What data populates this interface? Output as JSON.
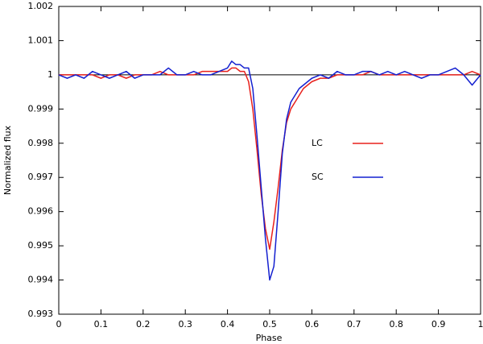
{
  "chart_data": {
    "type": "line",
    "x_label": "Phase",
    "y_label": "Normalized flux",
    "x": [
      0,
      0.02,
      0.04,
      0.06,
      0.08,
      0.1,
      0.12,
      0.14,
      0.16,
      0.18,
      0.2,
      0.22,
      0.24,
      0.26,
      0.28,
      0.3,
      0.32,
      0.34,
      0.36,
      0.38,
      0.4,
      0.41,
      0.42,
      0.43,
      0.44,
      0.45,
      0.46,
      0.47,
      0.48,
      0.49,
      0.5,
      0.51,
      0.52,
      0.53,
      0.54,
      0.55,
      0.56,
      0.57,
      0.58,
      0.59,
      0.6,
      0.62,
      0.64,
      0.66,
      0.68,
      0.7,
      0.72,
      0.74,
      0.76,
      0.78,
      0.8,
      0.82,
      0.84,
      0.86,
      0.88,
      0.9,
      0.92,
      0.94,
      0.96,
      0.98,
      1
    ],
    "series": [
      {
        "name": "LC",
        "color": "#e8201c",
        "values": [
          1.0,
          1.0,
          1.0,
          1.0,
          1.0,
          0.9999,
          1.0,
          1.0,
          0.9999,
          1.0,
          1.0,
          1.0,
          1.0001,
          1.0,
          1.0,
          1.0,
          1.0,
          1.0001,
          1.0001,
          1.0001,
          1.0001,
          1.0002,
          1.0002,
          1.0001,
          1.0001,
          0.9998,
          0.999,
          0.9978,
          0.9965,
          0.9955,
          0.9949,
          0.9957,
          0.9967,
          0.9978,
          0.9986,
          0.999,
          0.9992,
          0.9994,
          0.9996,
          0.9997,
          0.9998,
          0.9999,
          0.9999,
          1.0,
          1.0,
          1.0,
          1.0,
          1.0001,
          1.0,
          1.0,
          1.0,
          1.0,
          1.0,
          1.0,
          1.0,
          1.0,
          1.0,
          1.0,
          1.0,
          1.0001,
          1.0
        ]
      },
      {
        "name": "SC",
        "color": "#1420d0",
        "values": [
          1.0,
          0.9999,
          1.0,
          0.9999,
          1.0001,
          1.0,
          0.9999,
          1.0,
          1.0001,
          0.9999,
          1.0,
          1.0,
          1.0,
          1.0002,
          1.0,
          1.0,
          1.0001,
          1.0,
          1.0,
          1.0001,
          1.0002,
          1.0004,
          1.0003,
          1.0003,
          1.0002,
          1.0002,
          0.9996,
          0.9982,
          0.9967,
          0.9952,
          0.994,
          0.9944,
          0.996,
          0.9977,
          0.9987,
          0.9992,
          0.9994,
          0.9996,
          0.9997,
          0.9998,
          0.9999,
          1.0,
          0.9999,
          1.0001,
          1.0,
          1.0,
          1.0001,
          1.0001,
          1.0,
          1.0001,
          1.0,
          1.0001,
          1.0,
          0.9999,
          1.0,
          1.0,
          1.0001,
          1.0002,
          1.0,
          0.9997,
          1.0
        ]
      }
    ],
    "reference_line": 1,
    "xlim": [
      0,
      1
    ],
    "xticks": [
      0,
      0.1,
      0.2,
      0.3,
      0.4,
      0.5,
      0.6,
      0.7,
      0.8,
      0.9,
      1
    ],
    "ylim": [
      0.993,
      1.002
    ],
    "yticks": [
      0.993,
      0.994,
      0.995,
      0.996,
      0.997,
      0.998,
      0.999,
      1,
      1.001,
      1.002
    ],
    "legend": "center-right",
    "grid": false
  }
}
